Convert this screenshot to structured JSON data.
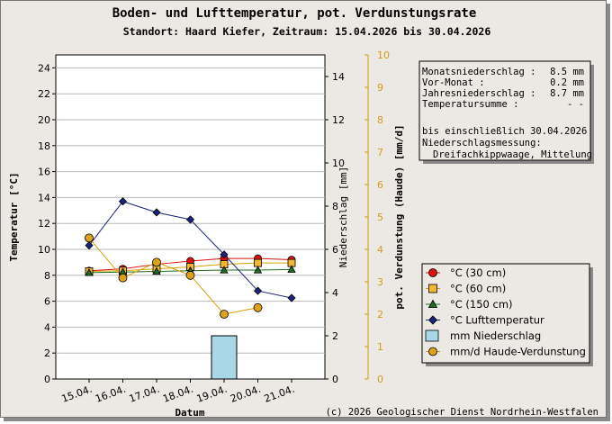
{
  "chart_data": {
    "type": "line",
    "title": "Boden- und Lufttemperatur, pot. Verdunstungsrate",
    "subtitle": "Standort: Haard Kiefer, Zeitraum: 15.04.2026 bis 30.04.2026",
    "xlabel": "Datum",
    "ylabel_left": "Temperatur [°C]",
    "ylabel_right1": "Niederschlag [mm]",
    "ylabel_right2": "pot. Verdunstung (Haude) [mm/d]",
    "categories": [
      "15.04.",
      "16.04.",
      "17.04.",
      "18.04.",
      "19.04.",
      "20.04.",
      "21.04."
    ],
    "ylim_left": [
      0,
      25
    ],
    "yticks_left": [
      "0",
      "2",
      "4",
      "6",
      "8",
      "10",
      "12",
      "14",
      "16",
      "18",
      "20",
      "22",
      "24"
    ],
    "ylim_right1": [
      0,
      15
    ],
    "yticks_right1": [
      "0",
      "2",
      "4",
      "6",
      "8",
      "10",
      "12",
      "14"
    ],
    "ylim_right2": [
      0,
      10
    ],
    "yticks_right2": [
      "0",
      "1",
      "2",
      "3",
      "4",
      "5",
      "6",
      "7",
      "8",
      "9",
      "10"
    ],
    "series": [
      {
        "name": "°C (30 cm)",
        "axis": "left",
        "kind": "line",
        "marker": "circle",
        "color": "#e01010",
        "fill": "#e01010",
        "values": [
          8.35,
          8.5,
          8.85,
          9.1,
          9.3,
          9.3,
          9.2
        ]
      },
      {
        "name": "°C (60 cm)",
        "axis": "left",
        "kind": "line",
        "marker": "square",
        "color": "#d7a000",
        "fill": "#f2b830",
        "values": [
          8.3,
          8.35,
          8.5,
          8.65,
          8.85,
          8.95,
          8.95
        ]
      },
      {
        "name": "°C (150 cm)",
        "axis": "left",
        "kind": "line",
        "marker": "triangle",
        "color": "#1f6a1f",
        "fill": "#1f6a1f",
        "values": [
          8.2,
          8.25,
          8.3,
          8.35,
          8.4,
          8.4,
          8.45
        ]
      },
      {
        "name": "°C   Lufttemperatur",
        "axis": "left",
        "kind": "line",
        "marker": "diamond",
        "color": "#1a237e",
        "fill": "#1a237e",
        "values": [
          10.3,
          13.7,
          12.85,
          12.3,
          9.6,
          6.8,
          6.25
        ]
      },
      {
        "name": "mm   Niederschlag",
        "axis": "right1",
        "kind": "bar",
        "color": "#000000",
        "fill": "#a8d8e8",
        "values": [
          0,
          0,
          0,
          0,
          2.0,
          0,
          0
        ]
      },
      {
        "name": "mm/d Haude-Verdunstung",
        "axis": "right2",
        "kind": "line",
        "marker": "circle",
        "color": "#d7a000",
        "fill": "#dfa01a",
        "values": [
          4.35,
          3.12,
          3.6,
          3.2,
          2.0,
          2.2,
          null
        ]
      }
    ]
  },
  "info_box": {
    "rows": [
      {
        "label": "Monatsniederschlag :",
        "value": "8.5 mm"
      },
      {
        "label": "Vor-Monat          :",
        "value": "0.2 mm"
      },
      {
        "label": "Jahresniederschlag :",
        "value": "8.7 mm"
      },
      {
        "label": "Temperatursumme    :",
        "value": "- -"
      }
    ],
    "note1": "bis einschließlich 30.04.2026",
    "note2": "Niederschlagsmessung:",
    "note3": "Dreifachkippwaage, Mittelung"
  },
  "copyright": "(c) 2026 Geologischer Dienst Nordrhein-Westfalen"
}
